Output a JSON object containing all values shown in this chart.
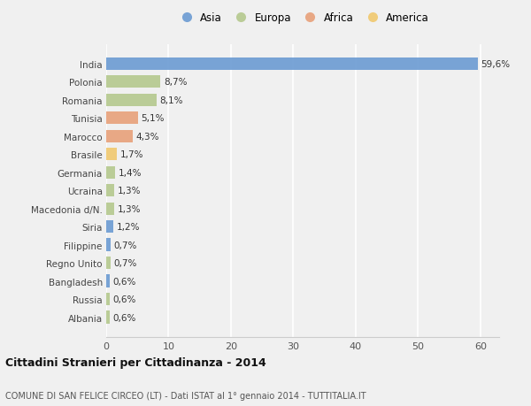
{
  "categories": [
    "India",
    "Polonia",
    "Romania",
    "Tunisia",
    "Marocco",
    "Brasile",
    "Germania",
    "Ucraina",
    "Macedonia d/N.",
    "Siria",
    "Filippine",
    "Regno Unito",
    "Bangladesh",
    "Russia",
    "Albania"
  ],
  "values": [
    59.6,
    8.7,
    8.1,
    5.1,
    4.3,
    1.7,
    1.4,
    1.3,
    1.3,
    1.2,
    0.7,
    0.7,
    0.6,
    0.6,
    0.6
  ],
  "labels": [
    "59,6%",
    "8,7%",
    "8,1%",
    "5,1%",
    "4,3%",
    "1,7%",
    "1,4%",
    "1,3%",
    "1,3%",
    "1,2%",
    "0,7%",
    "0,7%",
    "0,6%",
    "0,6%",
    "0,6%"
  ],
  "continents": [
    "Asia",
    "Europa",
    "Europa",
    "Africa",
    "Africa",
    "America",
    "Europa",
    "Europa",
    "Europa",
    "Asia",
    "Asia",
    "Europa",
    "Asia",
    "Europa",
    "Europa"
  ],
  "continent_colors": {
    "Asia": "#6b9bd2",
    "Europa": "#b5c98e",
    "Africa": "#e8a07a",
    "America": "#f0c96e"
  },
  "legend_order": [
    "Asia",
    "Europa",
    "Africa",
    "America"
  ],
  "title": "Cittadini Stranieri per Cittadinanza - 2014",
  "subtitle": "COMUNE DI SAN FELICE CIRCEO (LT) - Dati ISTAT al 1° gennaio 2014 - TUTTITALIA.IT",
  "xlim": [
    0,
    63
  ],
  "xticks": [
    0,
    10,
    20,
    30,
    40,
    50,
    60
  ],
  "bg_color": "#f0f0f0",
  "grid_color": "#ffffff",
  "bar_height": 0.7
}
